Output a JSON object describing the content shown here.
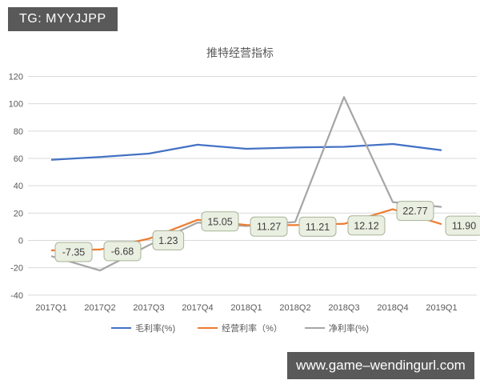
{
  "header": {
    "badge_label": "TG: MYYJJPP"
  },
  "footer": {
    "url_label": "www.game–wendingurl.com"
  },
  "colors": {
    "badge_bg": "#595959",
    "badge_text": "#ffffff",
    "footer_bg": "#595959",
    "footer_text": "#ffffff",
    "grid": "#d9d9d9",
    "axis_text": "#595959",
    "label_box_bg": "#e9efe1",
    "label_box_border": "#a8b398",
    "label_text": "#404040"
  },
  "chart_data": {
    "type": "line",
    "title": "推特经营指标",
    "categories": [
      "2017Q1",
      "2017Q2",
      "2017Q3",
      "2017Q4",
      "2018Q1",
      "2018Q2",
      "2018Q3",
      "2018Q4",
      "2019Q1"
    ],
    "series": [
      {
        "name": "毛利率(%)",
        "color": "#4472c4",
        "data_labels": false,
        "values": [
          59,
          61,
          63.5,
          70,
          67,
          68,
          68.5,
          70.5,
          66
        ]
      },
      {
        "name": "经营利率（%）",
        "color": "#ed7d31",
        "data_labels": true,
        "values": [
          -7.35,
          -6.68,
          1.23,
          15.05,
          11.27,
          11.21,
          12.12,
          22.77,
          11.9
        ],
        "label_texts": [
          "-7.35",
          "-6.68",
          "1.23",
          "15.05",
          "11.27",
          "11.21",
          "12.12",
          "22.77",
          "11.90"
        ]
      },
      {
        "name": "净利率(%)",
        "color": "#a6a6a6",
        "data_labels": false,
        "values": [
          -11.5,
          -22,
          -3.5,
          13,
          10.5,
          13.5,
          104.9,
          28,
          24.5
        ]
      }
    ],
    "ylim": [
      -40,
      120
    ],
    "ytick_step": 20,
    "grid": "horizontal",
    "legend_position": "bottom"
  }
}
